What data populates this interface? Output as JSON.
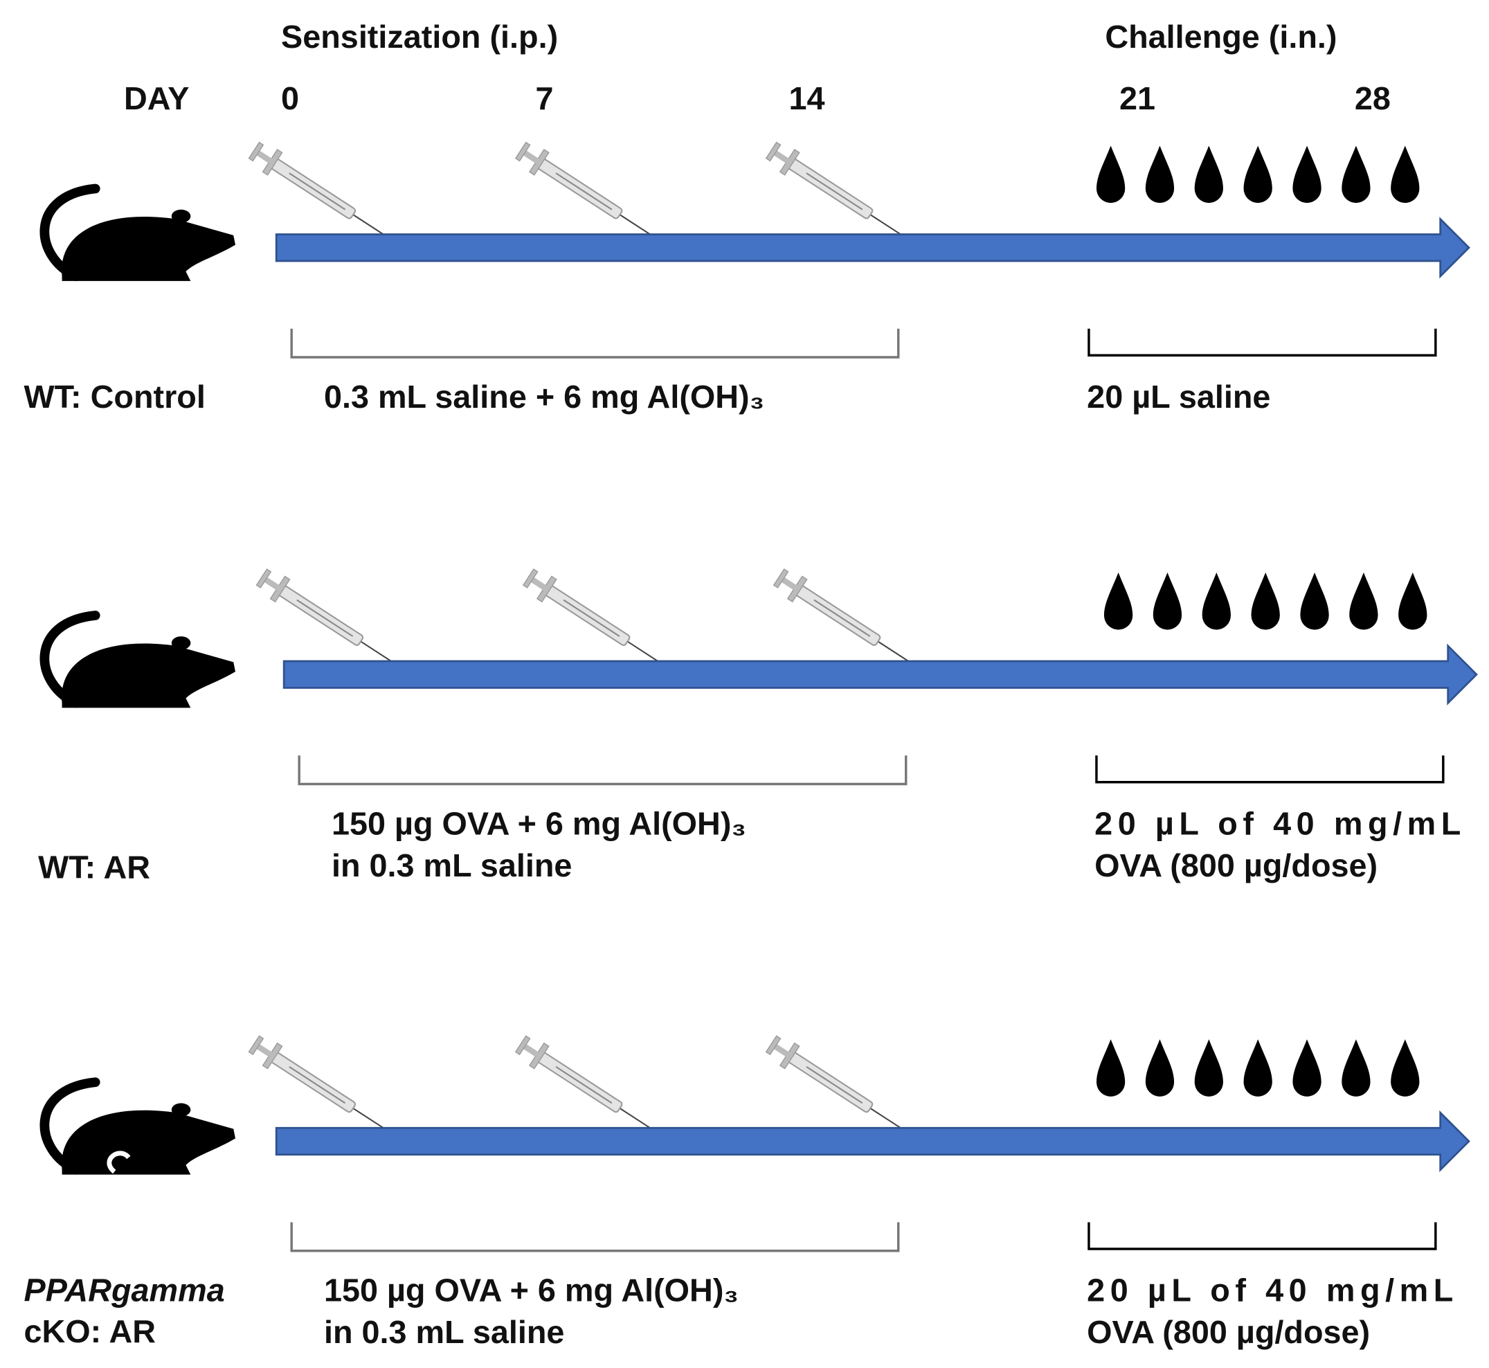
{
  "header": {
    "sensitization": "Sensitization (i.p.)",
    "challenge": "Challenge (i.n.)",
    "day_label": "DAY",
    "days": [
      "0",
      "7",
      "14",
      "21",
      "28"
    ]
  },
  "groups": [
    {
      "label": [
        "WT: Control"
      ],
      "sensitization": [
        "0.3 mL saline + 6 mg Al(OH)₃"
      ],
      "challenge": [
        "20 µL saline"
      ]
    },
    {
      "label": [
        "WT: AR"
      ],
      "sensitization": [
        "150 µg OVA + 6 mg Al(OH)₃",
        "in 0.3 mL saline"
      ],
      "challenge": [
        "20 µL of 40 mg/mL",
        "OVA (800 µg/dose)"
      ]
    },
    {
      "label": [
        "PPARgamma",
        "cKO: AR"
      ],
      "sensitization": [
        "150 µg OVA + 6 mg Al(OH)₃",
        "in 0.3 mL saline"
      ],
      "challenge": [
        "20 µL of 40 mg/mL",
        "OVA (800 µg/dose)"
      ]
    }
  ]
}
